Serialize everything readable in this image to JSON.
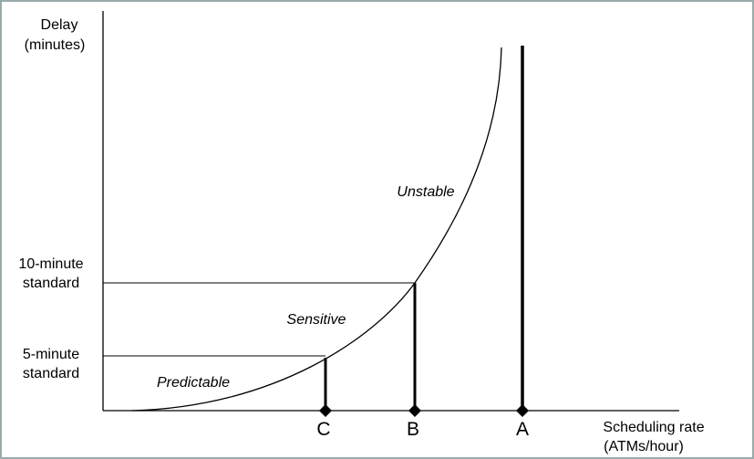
{
  "y_axis_label": [
    "Delay",
    "(minutes)"
  ],
  "x_axis_label": [
    "Scheduling rate",
    "(ATMs/hour)"
  ],
  "levels": [
    [
      "10-minute",
      "standard"
    ],
    [
      "5-minute",
      "standard"
    ]
  ],
  "regions": [
    "Predictable",
    "Sensitive",
    "Unstable"
  ],
  "markers": [
    "C",
    "B",
    "A"
  ]
}
